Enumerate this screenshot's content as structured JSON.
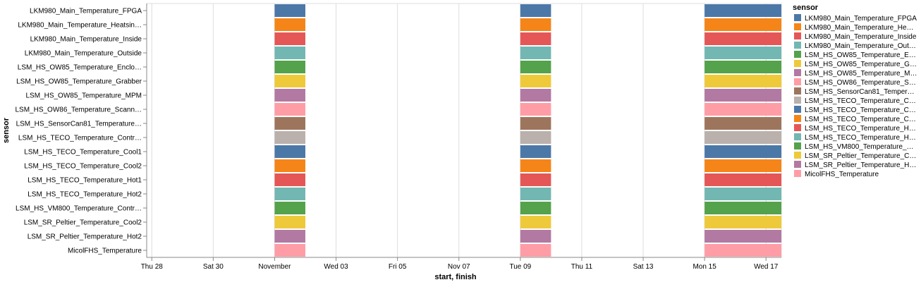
{
  "chart_data": {
    "type": "gantt",
    "y_title": "sensor",
    "x_title": "start, finish",
    "legend_title": "sensor",
    "legend_placement": "right",
    "grid": true,
    "x_domain": [
      "2021-10-27T20:00",
      "2021-11-17T12:00"
    ],
    "x_ticks": [
      {
        "date": "2021-10-28",
        "label": "Thu 28"
      },
      {
        "date": "2021-10-30",
        "label": "Sat 30"
      },
      {
        "date": "2021-11-01",
        "label": "November"
      },
      {
        "date": "2021-11-03",
        "label": "Wed 03"
      },
      {
        "date": "2021-11-05",
        "label": "Fri 05"
      },
      {
        "date": "2021-11-07",
        "label": "Nov 07"
      },
      {
        "date": "2021-11-09",
        "label": "Tue 09"
      },
      {
        "date": "2021-11-11",
        "label": "Thu 11"
      },
      {
        "date": "2021-11-13",
        "label": "Sat 13"
      },
      {
        "date": "2021-11-15",
        "label": "Mon 15"
      },
      {
        "date": "2021-11-17",
        "label": "Wed 17"
      }
    ],
    "intervals": [
      {
        "start": "2021-11-01",
        "finish": "2021-11-02"
      },
      {
        "start": "2021-11-09",
        "finish": "2021-11-10"
      },
      {
        "start": "2021-11-15",
        "finish": "2021-11-17T12:00"
      }
    ],
    "y_labels": [
      "LKM980_Main_Temperature_FPGA",
      "LKM980_Main_Temperature_Heatsin…",
      "LKM980_Main_Temperature_Inside",
      "LKM980_Main_Temperature_Outside",
      "LSM_HS_OW85_Temperature_Enclo…",
      "LSM_HS_OW85_Temperature_Grabber",
      "LSM_HS_OW85_Temperature_MPM",
      "LSM_HS_OW86_Temperature_Scann…",
      "LSM_HS_SensorCan81_Temperature…",
      "LSM_HS_TECO_Temperature_Contr…",
      "LSM_HS_TECO_Temperature_Cool1",
      "LSM_HS_TECO_Temperature_Cool2",
      "LSM_HS_TECO_Temperature_Hot1",
      "LSM_HS_TECO_Temperature_Hot2",
      "LSM_HS_VM800_Temperature_Contr…",
      "LSM_SR_Peltier_Temperature_Cool2",
      "LSM_SR_Peltier_Temperature_Hot2",
      "MicolFHS_Temperature"
    ],
    "legend_labels": [
      "LKM980_Main_Temperature_FPGA",
      "LKM980_Main_Temperature_He…",
      "LKM980_Main_Temperature_Inside",
      "LKM980_Main_Temperature_Out…",
      "LSM_HS_OW85_Temperature_E…",
      "LSM_HS_OW85_Temperature_G…",
      "LSM_HS_OW85_Temperature_M…",
      "LSM_HS_OW86_Temperature_S…",
      "LSM_HS_SensorCan81_Temper…",
      "LSM_HS_TECO_Temperature_C…",
      "LSM_HS_TECO_Temperature_C…",
      "LSM_HS_TECO_Temperature_C…",
      "LSM_HS_TECO_Temperature_H…",
      "LSM_HS_TECO_Temperature_H…",
      "LSM_HS_VM800_Temperature_…",
      "LSM_SR_Peltier_Temperature_C…",
      "LSM_SR_Peltier_Temperature_H…",
      "MicolFHS_Temperature"
    ],
    "colors": [
      "#4c78a8",
      "#f58518",
      "#e45756",
      "#72b7b2",
      "#54a24b",
      "#eeca3b",
      "#b279a2",
      "#ff9da6",
      "#9d755d",
      "#bab0ac"
    ]
  }
}
